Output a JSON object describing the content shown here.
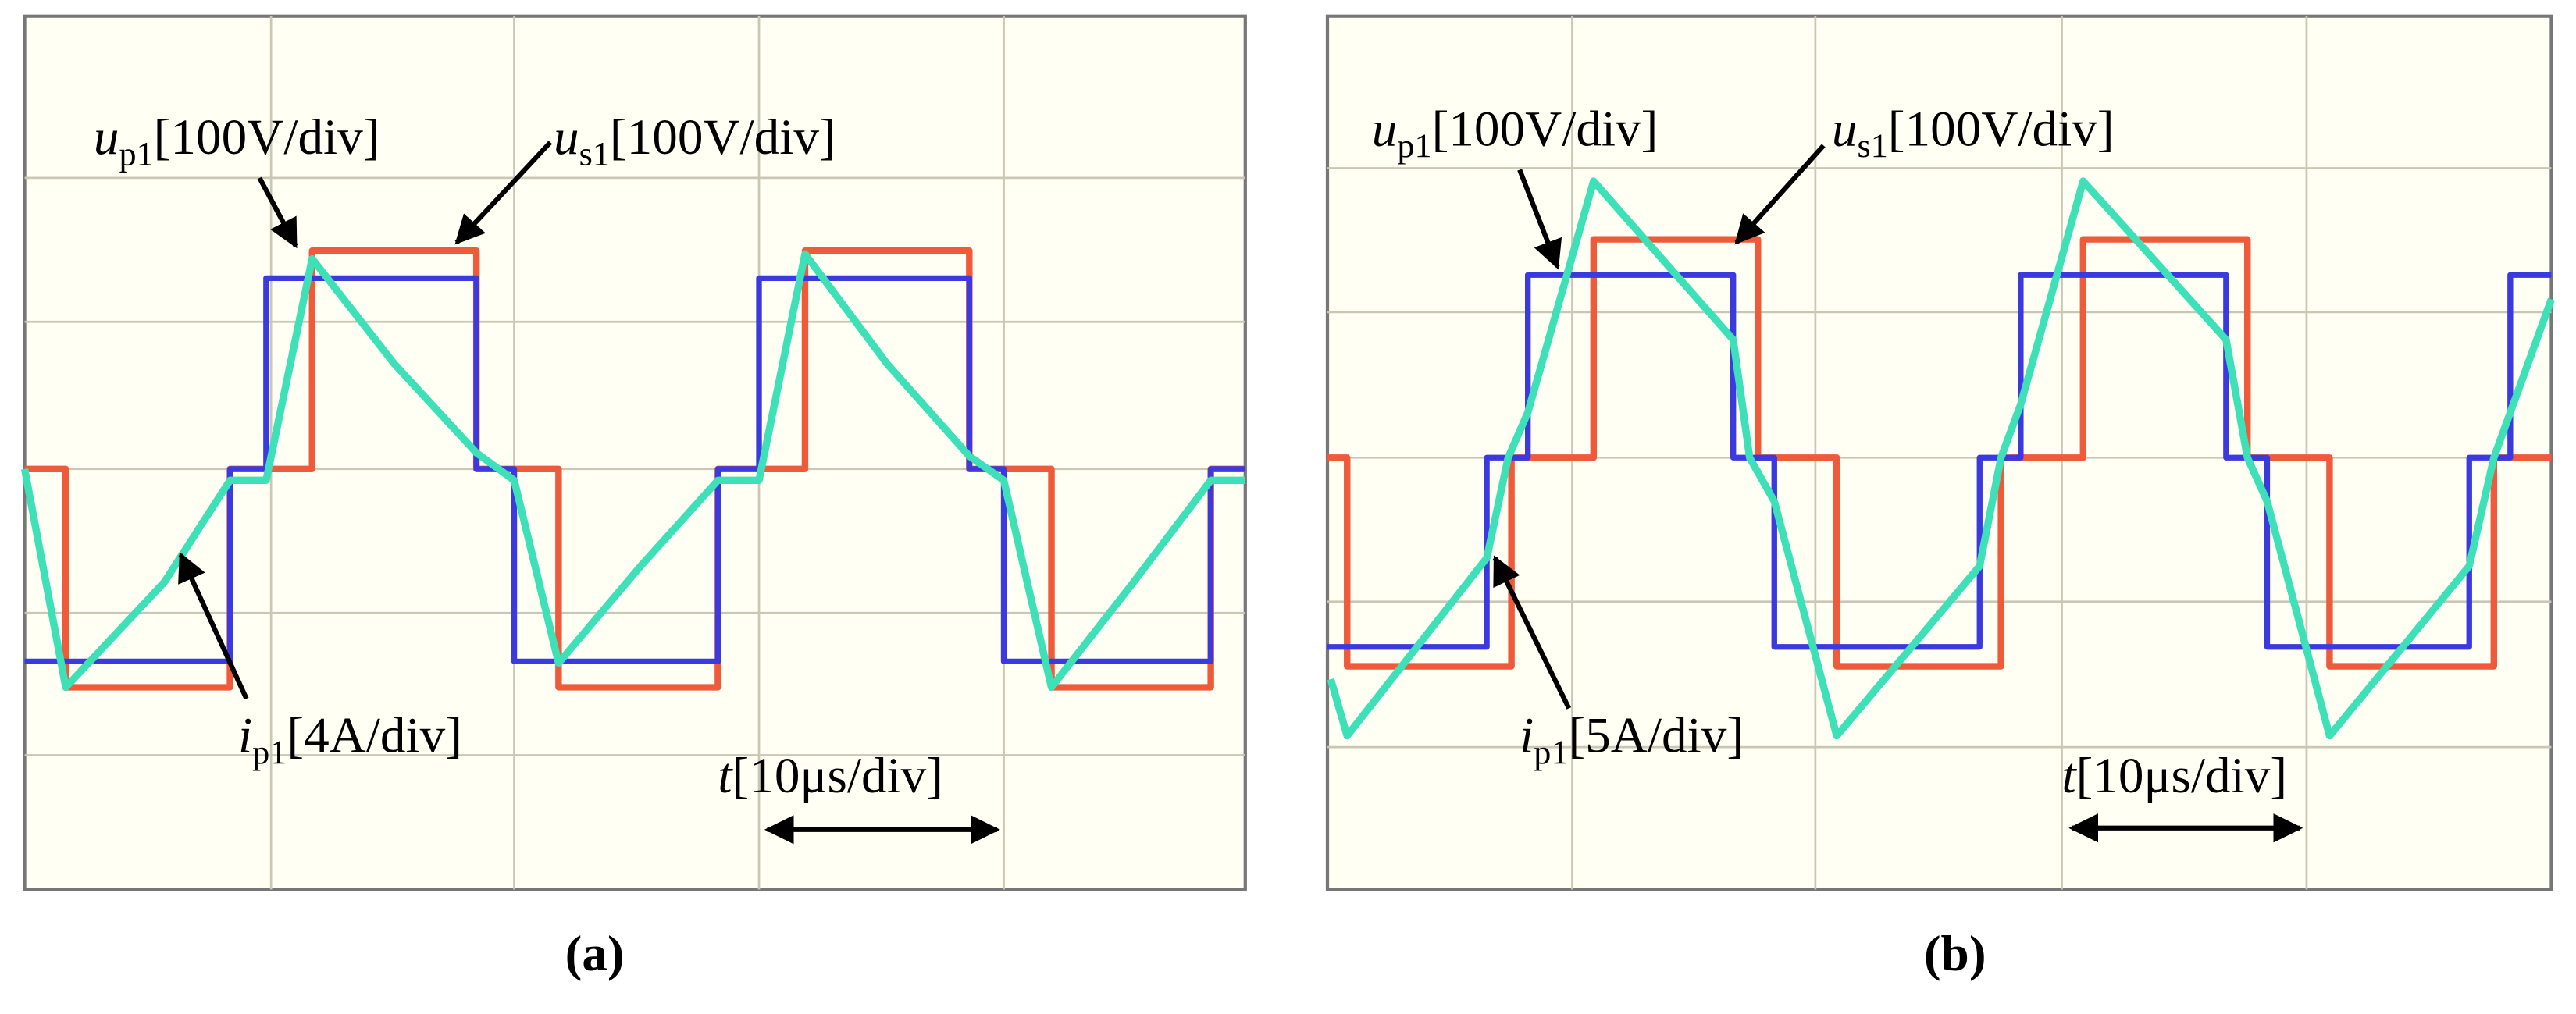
{
  "panels": [
    {
      "caption": "(a)",
      "labels": [
        {
          "symbol": "u",
          "subscript": "p1",
          "text": "[100V/div]"
        },
        {
          "symbol": "u",
          "subscript": "s1",
          "text": "[100V/div]"
        },
        {
          "symbol": "i",
          "subscript": "p1",
          "text": "[4A/div]"
        },
        {
          "symbol": "t",
          "text": "[10μs/div]"
        }
      ]
    },
    {
      "caption": "(b)",
      "labels": [
        {
          "symbol": "u",
          "subscript": "p1",
          "text": "[100V/div]"
        },
        {
          "symbol": "u",
          "subscript": "s1",
          "text": "[100V/div]"
        },
        {
          "symbol": "i",
          "subscript": "p1",
          "text": "[5A/div]"
        },
        {
          "symbol": "t",
          "text": "[10μs/div]"
        }
      ]
    }
  ]
}
